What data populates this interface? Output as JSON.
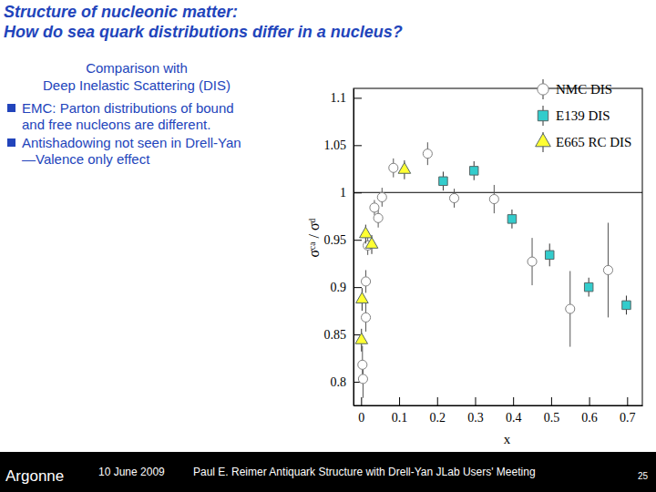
{
  "slide": {
    "title": [
      "Structure of nucleonic matter:",
      "How do sea quark distributions differ in a nucleus?"
    ],
    "intro": [
      "Comparison with",
      "Deep Inelastic Scattering (DIS)"
    ],
    "bullets": [
      [
        "EMC: Parton distributions of bound",
        "and free nucleons are different."
      ],
      [
        "Antishadowing not seen in Drell-Yan",
        "—Valence only effect"
      ]
    ],
    "footer": {
      "logo": "Argonne",
      "date": "10 June 2009",
      "talk": "Paul E. Reimer Antiquark Structure with Drell-Yan JLab Users' Meeting",
      "page": "25"
    }
  },
  "chart_data": {
    "type": "scatter",
    "xlabel": "x",
    "ylabel": "σᶜᵃ / σᵈ",
    "xlim": [
      -0.02,
      0.74
    ],
    "ylim": [
      0.775,
      1.11
    ],
    "xticks": [
      0,
      0.1,
      0.2,
      0.3,
      0.4,
      0.5,
      0.6,
      0.7
    ],
    "yticks": [
      0.8,
      0.85,
      0.9,
      0.95,
      1,
      1.05,
      1.1
    ],
    "reference_lines": [
      1
    ],
    "legend": "upper right",
    "series": [
      {
        "name": "NMC DIS",
        "color": "#808080",
        "marker": "open-circle",
        "x": [
          0.0035,
          0.005,
          0.0125,
          0.0125,
          0.0175,
          0.035,
          0.045,
          0.055,
          0.085,
          0.175,
          0.245,
          0.35,
          0.45,
          0.55,
          0.65
        ],
        "values": [
          0.818,
          0.803,
          0.868,
          0.906,
          0.944,
          0.984,
          0.973,
          0.995,
          1.026,
          1.041,
          0.994,
          0.993,
          0.927,
          0.877,
          0.918
        ],
        "errors": [
          0.02,
          0.02,
          0.015,
          0.012,
          0.01,
          0.008,
          0.01,
          0.01,
          0.01,
          0.012,
          0.01,
          0.015,
          0.025,
          0.04,
          0.05
        ]
      },
      {
        "name": "E139 DIS",
        "color": "#33cccc",
        "marker": "square",
        "x": [
          0.216,
          0.297,
          0.397,
          0.496,
          0.599,
          0.698
        ],
        "values": [
          1.012,
          1.023,
          0.972,
          0.934,
          0.9,
          0.881
        ],
        "errors": [
          0.01,
          0.01,
          0.01,
          0.012,
          0.01,
          0.01
        ]
      },
      {
        "name": "E665 RC DIS",
        "color": "#ffff33",
        "marker": "triangle",
        "x": [
          0.001,
          0.0025,
          0.012,
          0.028,
          0.114
        ],
        "values": [
          0.844,
          0.887,
          0.956,
          0.945,
          1.024
        ],
        "errors": [
          0.012,
          0.012,
          0.01,
          0.01,
          0.01
        ]
      }
    ]
  }
}
